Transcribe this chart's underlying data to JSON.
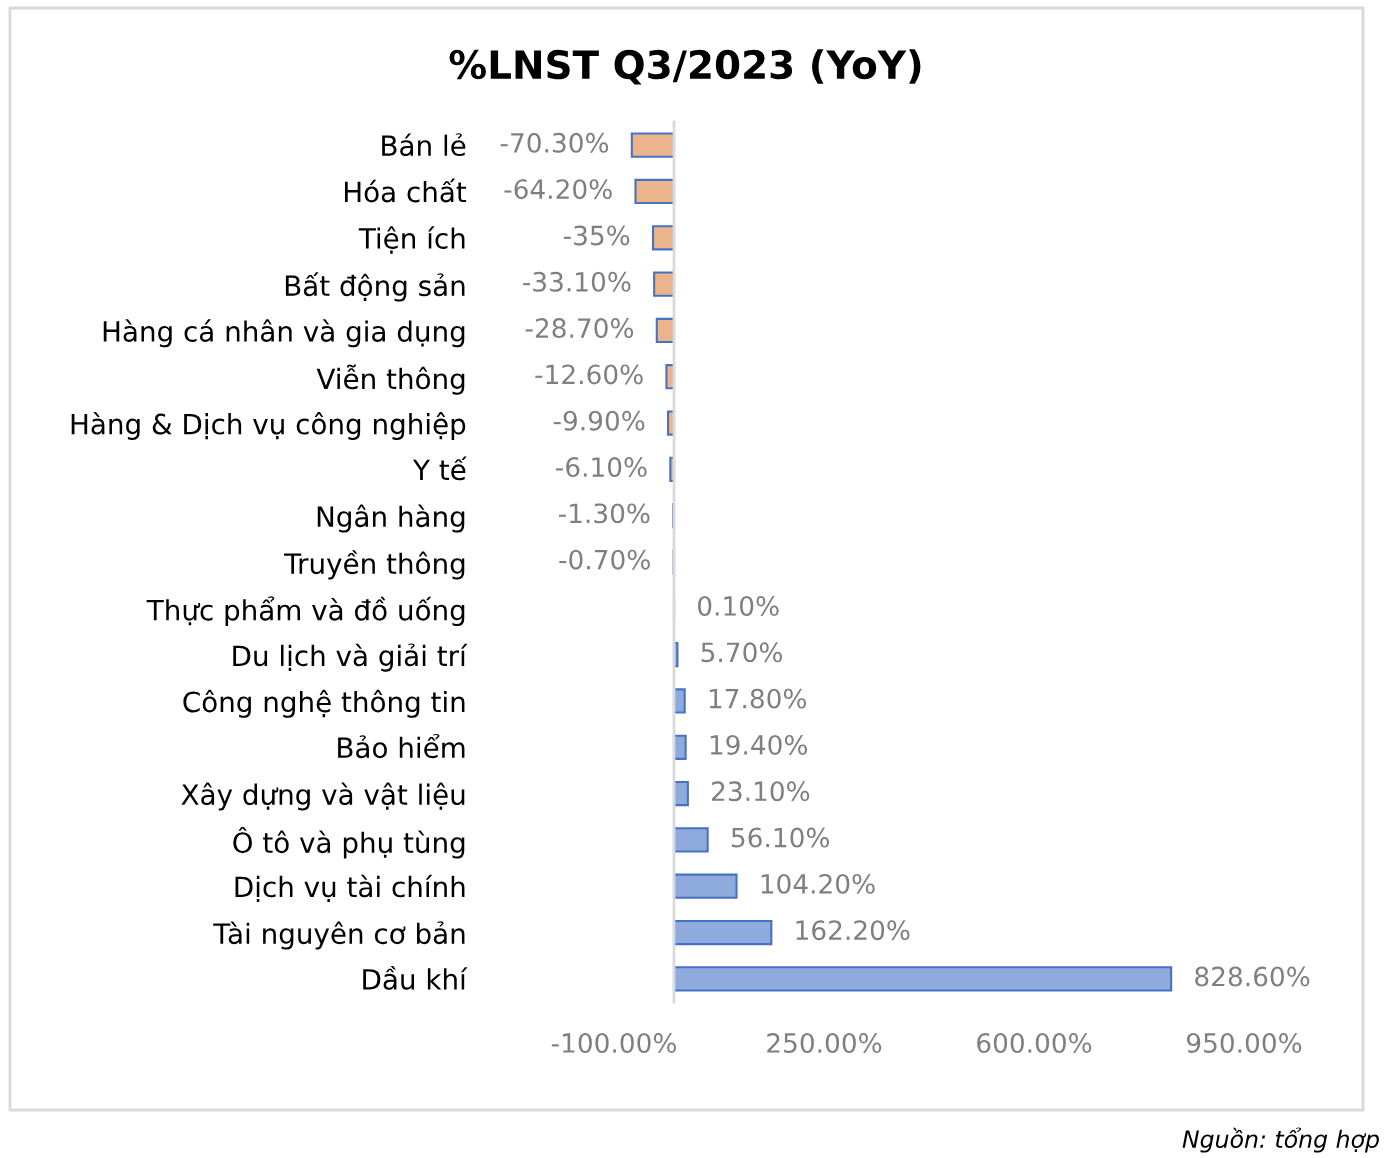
{
  "chart_data": {
    "type": "bar",
    "orientation": "horizontal",
    "title": "%LNST Q3/2023 (YoY)",
    "categories": [
      "Bán lẻ",
      "Hóa chất",
      "Tiện ích",
      "Bất động sản",
      "Hàng cá nhân và gia dụng",
      "Viễn thông",
      "Hàng & Dịch vụ công nghiệp",
      "Y tế",
      "Ngân hàng",
      "Truyền thông",
      "Thực phẩm và đồ uống",
      "Du lịch và giải trí",
      "Công nghệ thông tin",
      "Bảo hiểm",
      "Xây dựng và vật liệu",
      "Ô tô và phụ tùng",
      "Dịch vụ tài chính",
      "Tài nguyên cơ bản",
      "Dầu khí"
    ],
    "values": [
      -70.3,
      -64.2,
      -35,
      -33.1,
      -28.7,
      -12.6,
      -9.9,
      -6.1,
      -1.3,
      -0.7,
      0.1,
      5.7,
      17.8,
      19.4,
      23.1,
      56.1,
      104.2,
      162.2,
      828.6
    ],
    "value_labels": [
      "-70.30%",
      "-64.20%",
      "-35%",
      "-33.10%",
      "-28.70%",
      "-12.60%",
      "-9.90%",
      "-6.10%",
      "-1.30%",
      "-0.70%",
      "0.10%",
      "5.70%",
      "17.80%",
      "19.40%",
      "23.10%",
      "56.10%",
      "104.20%",
      "162.20%",
      "828.60%"
    ],
    "colors": [
      "#ebb48a",
      "#ebb48a",
      "#ebb48a",
      "#ebb48a",
      "#ebb48a",
      "#ebb48a",
      "#ebb48a",
      "#ebb48a",
      "#ebb48a",
      "#ebb48a",
      "#8faadc",
      "#8faadc",
      "#8faadc",
      "#8faadc",
      "#8faadc",
      "#8faadc",
      "#8faadc",
      "#8faadc",
      "#8faadc"
    ],
    "xlim": [
      -100,
      950
    ],
    "xticks": [
      {
        "value": -100,
        "label": "-100.00%"
      },
      {
        "value": 250,
        "label": "250.00%"
      },
      {
        "value": 600,
        "label": "600.00%"
      },
      {
        "value": 950,
        "label": "950.00%"
      }
    ],
    "annotations": [
      "Nguồn: tổng hợp"
    ]
  }
}
